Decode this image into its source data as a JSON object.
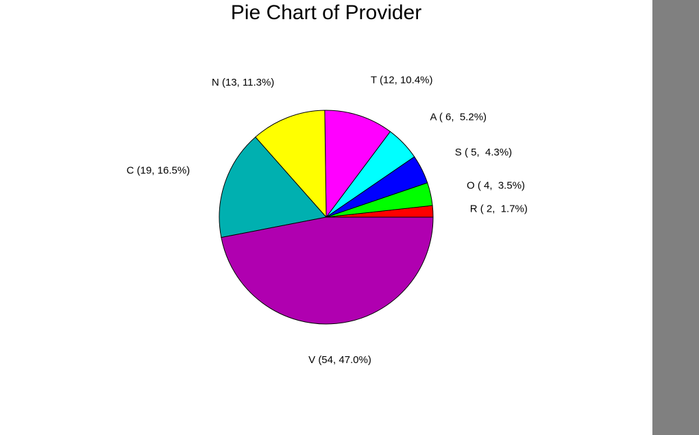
{
  "chart_data": {
    "type": "pie",
    "title": "Pie Chart of Provider",
    "slices": [
      {
        "label": "V (54, 47.0%)",
        "category": "V",
        "value": 54,
        "percent": 47.0,
        "color": "#b000b0"
      },
      {
        "label": "C (19, 16.5%)",
        "category": "C",
        "value": 19,
        "percent": 16.5,
        "color": "#00b0b0"
      },
      {
        "label": "N (13, 11.3%)",
        "category": "N",
        "value": 13,
        "percent": 11.3,
        "color": "#ffff00"
      },
      {
        "label": "T (12, 10.4%)",
        "category": "T",
        "value": 12,
        "percent": 10.4,
        "color": "#ff00ff"
      },
      {
        "label": "A ( 6,  5.2%)",
        "category": "A",
        "value": 6,
        "percent": 5.2,
        "color": "#00ffff"
      },
      {
        "label": "S ( 5,  4.3%)",
        "category": "S",
        "value": 5,
        "percent": 4.3,
        "color": "#0000ff"
      },
      {
        "label": "O ( 4,  3.5%)",
        "category": "O",
        "value": 4,
        "percent": 3.5,
        "color": "#00ff00"
      },
      {
        "label": "R ( 2,  1.7%)",
        "category": "R",
        "value": 2,
        "percent": 1.7,
        "color": "#ff0000"
      }
    ],
    "start_angle_deg": 0,
    "direction": "counterclockwise",
    "legend": "none"
  }
}
